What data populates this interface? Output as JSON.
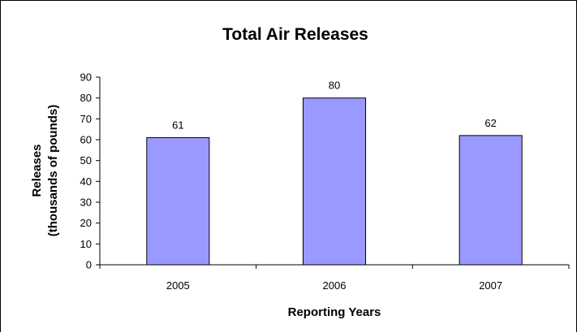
{
  "chart_data": {
    "type": "bar",
    "title": "Total Air Releases",
    "xlabel": "Reporting Years",
    "ylabel_lines": [
      "Releases",
      "(thousands of pounds)"
    ],
    "categories": [
      "2005",
      "2006",
      "2007"
    ],
    "values": [
      61,
      80,
      62
    ],
    "ylim": [
      0,
      90
    ],
    "yticks": [
      0,
      10,
      20,
      30,
      40,
      50,
      60,
      70,
      80,
      90
    ],
    "grid": false,
    "legend": "none",
    "data_labels": true,
    "colors": {
      "bar_fill": "#9999ff",
      "bar_stroke": "#000000",
      "axis": "#000000"
    }
  }
}
